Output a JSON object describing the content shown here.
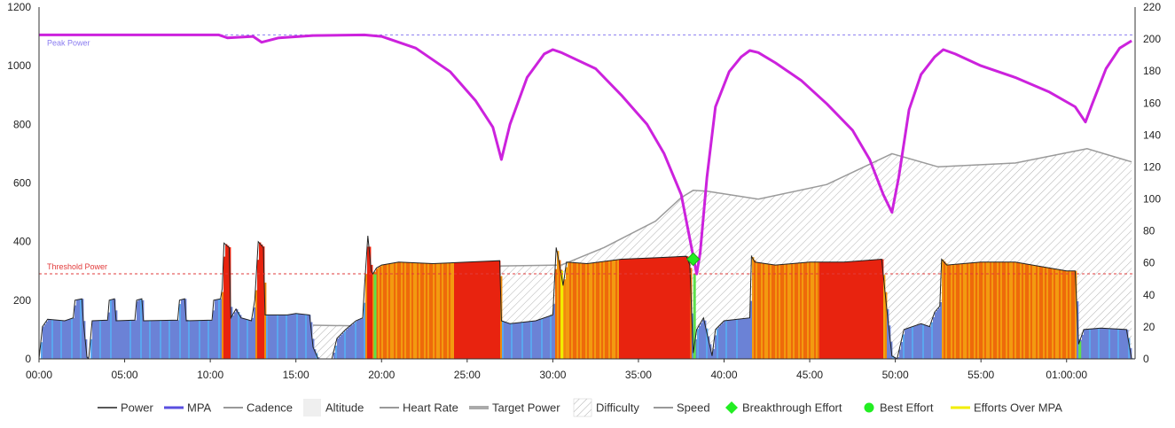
{
  "chart_data": {
    "type": "area",
    "x_axis": {
      "ticks": [
        "00:00",
        "05:00",
        "10:00",
        "15:00",
        "20:00",
        "25:00",
        "30:00",
        "35:00",
        "40:00",
        "45:00",
        "50:00",
        "55:00",
        "01:00:00"
      ],
      "range_minutes": [
        0,
        64
      ]
    },
    "y_axis_left": {
      "ticks": [
        0,
        200,
        400,
        600,
        800,
        1000,
        1200
      ],
      "range": [
        0,
        1200
      ]
    },
    "y_axis_right": {
      "ticks": [
        0,
        20,
        40,
        60,
        80,
        100,
        120,
        140,
        160,
        180,
        200,
        220
      ],
      "range": [
        0,
        220
      ]
    },
    "reference_lines": [
      {
        "label": "Peak Power",
        "value": 1105,
        "color": "#8a7cf0"
      },
      {
        "label": "Threshold Power",
        "value": 290,
        "color": "#e23b3b"
      }
    ],
    "power_series": [
      [
        0,
        0
      ],
      [
        0.2,
        110
      ],
      [
        0.5,
        135
      ],
      [
        1.5,
        130
      ],
      [
        2.0,
        140
      ],
      [
        2.1,
        200
      ],
      [
        2.5,
        205
      ],
      [
        2.6,
        120
      ],
      [
        2.8,
        5
      ],
      [
        2.9,
        0
      ],
      [
        3.1,
        130
      ],
      [
        4.0,
        132
      ],
      [
        4.1,
        200
      ],
      [
        4.4,
        205
      ],
      [
        4.5,
        130
      ],
      [
        5.6,
        132
      ],
      [
        5.7,
        200
      ],
      [
        6.0,
        205
      ],
      [
        6.1,
        130
      ],
      [
        8.1,
        132
      ],
      [
        8.2,
        200
      ],
      [
        8.5,
        205
      ],
      [
        8.6,
        130
      ],
      [
        10.1,
        132
      ],
      [
        10.2,
        200
      ],
      [
        10.6,
        205
      ],
      [
        10.7,
        240
      ],
      [
        10.8,
        395
      ],
      [
        11.1,
        380
      ],
      [
        11.2,
        140
      ],
      [
        11.5,
        170
      ],
      [
        11.8,
        140
      ],
      [
        12.4,
        130
      ],
      [
        12.6,
        200
      ],
      [
        12.8,
        400
      ],
      [
        13.1,
        380
      ],
      [
        13.2,
        150
      ],
      [
        14.5,
        150
      ],
      [
        15.0,
        155
      ],
      [
        15.8,
        150
      ],
      [
        16.0,
        40
      ],
      [
        16.3,
        0
      ],
      [
        17.1,
        0
      ],
      [
        17.4,
        70
      ],
      [
        17.9,
        100
      ],
      [
        18.5,
        130
      ],
      [
        18.9,
        140
      ],
      [
        19.0,
        240
      ],
      [
        19.2,
        420
      ],
      [
        19.4,
        300
      ],
      [
        19.5,
        290
      ],
      [
        19.7,
        310
      ],
      [
        20.0,
        320
      ],
      [
        21.0,
        330
      ],
      [
        23.0,
        325
      ],
      [
        25.0,
        330
      ],
      [
        26.9,
        335
      ],
      [
        27.0,
        130
      ],
      [
        27.5,
        120
      ],
      [
        29.0,
        130
      ],
      [
        30.0,
        150
      ],
      [
        30.2,
        380
      ],
      [
        30.4,
        320
      ],
      [
        30.6,
        250
      ],
      [
        30.8,
        330
      ],
      [
        32.0,
        325
      ],
      [
        34.0,
        340
      ],
      [
        36.0,
        345
      ],
      [
        37.8,
        350
      ],
      [
        38.0,
        320
      ],
      [
        38.2,
        20
      ],
      [
        38.4,
        100
      ],
      [
        38.8,
        140
      ],
      [
        39.3,
        10
      ],
      [
        39.5,
        100
      ],
      [
        40.0,
        130
      ],
      [
        41.5,
        140
      ],
      [
        41.6,
        350
      ],
      [
        41.8,
        330
      ],
      [
        43.0,
        320
      ],
      [
        45.0,
        330
      ],
      [
        47.0,
        330
      ],
      [
        49.2,
        340
      ],
      [
        49.5,
        170
      ],
      [
        49.8,
        10
      ],
      [
        50.1,
        0
      ],
      [
        50.5,
        100
      ],
      [
        51.5,
        120
      ],
      [
        52.0,
        110
      ],
      [
        52.3,
        160
      ],
      [
        52.6,
        180
      ],
      [
        52.7,
        340
      ],
      [
        53.0,
        320
      ],
      [
        55.0,
        330
      ],
      [
        57.0,
        330
      ],
      [
        60.0,
        300
      ],
      [
        60.5,
        300
      ],
      [
        60.7,
        50
      ],
      [
        61.0,
        100
      ],
      [
        62.0,
        105
      ],
      [
        63.5,
        100
      ],
      [
        63.8,
        0
      ]
    ],
    "mpa_series": [
      [
        0,
        1105
      ],
      [
        10.5,
        1105
      ],
      [
        11.0,
        1095
      ],
      [
        12.5,
        1100
      ],
      [
        13.0,
        1080
      ],
      [
        14.0,
        1095
      ],
      [
        16.0,
        1103
      ],
      [
        19.0,
        1105
      ],
      [
        20.0,
        1100
      ],
      [
        22.0,
        1060
      ],
      [
        24.0,
        980
      ],
      [
        25.5,
        880
      ],
      [
        26.5,
        790
      ],
      [
        27.0,
        680
      ],
      [
        27.5,
        800
      ],
      [
        28.5,
        960
      ],
      [
        29.5,
        1040
      ],
      [
        30.0,
        1055
      ],
      [
        30.5,
        1045
      ],
      [
        32.5,
        990
      ],
      [
        34.0,
        900
      ],
      [
        35.5,
        800
      ],
      [
        36.5,
        700
      ],
      [
        37.5,
        560
      ],
      [
        38.2,
        350
      ],
      [
        38.4,
        290
      ],
      [
        38.6,
        360
      ],
      [
        39.0,
        620
      ],
      [
        39.5,
        860
      ],
      [
        40.3,
        980
      ],
      [
        41.0,
        1030
      ],
      [
        41.5,
        1052
      ],
      [
        42.0,
        1045
      ],
      [
        43.0,
        1010
      ],
      [
        44.5,
        950
      ],
      [
        46.0,
        870
      ],
      [
        47.5,
        780
      ],
      [
        48.5,
        680
      ],
      [
        49.3,
        560
      ],
      [
        49.8,
        500
      ],
      [
        50.2,
        620
      ],
      [
        50.8,
        850
      ],
      [
        51.5,
        970
      ],
      [
        52.3,
        1030
      ],
      [
        52.8,
        1055
      ],
      [
        53.5,
        1040
      ],
      [
        55.0,
        1000
      ],
      [
        57.0,
        960
      ],
      [
        59.0,
        910
      ],
      [
        60.5,
        860
      ],
      [
        61.1,
        808
      ],
      [
        61.5,
        870
      ],
      [
        62.3,
        990
      ],
      [
        63.1,
        1060
      ],
      [
        63.8,
        1085
      ]
    ],
    "difficulty_series": [
      [
        16.0,
        115
      ],
      [
        19.0,
        112
      ],
      [
        20.0,
        280
      ],
      [
        24.0,
        305
      ],
      [
        27.0,
        317
      ],
      [
        30.5,
        320
      ],
      [
        33.0,
        380
      ],
      [
        36.0,
        470
      ],
      [
        37.5,
        550
      ],
      [
        38.2,
        575
      ],
      [
        39.0,
        572
      ],
      [
        42.0,
        545
      ],
      [
        46.0,
        595
      ],
      [
        49.8,
        700
      ],
      [
        52.5,
        655
      ],
      [
        57.0,
        668
      ],
      [
        61.2,
        717
      ],
      [
        63.8,
        672
      ]
    ],
    "breakthrough_effort": {
      "x": 38.2,
      "y": 340
    },
    "legend": [
      {
        "label": "Power",
        "icon": "line-dark"
      },
      {
        "label": "MPA",
        "icon": "line-blue"
      },
      {
        "label": "Cadence",
        "icon": "line-gray"
      },
      {
        "label": "Altitude",
        "icon": "box-light"
      },
      {
        "label": "Heart Rate",
        "icon": "line-gray"
      },
      {
        "label": "Target Power",
        "icon": "line-gray-thick"
      },
      {
        "label": "Difficulty",
        "icon": "hatch"
      },
      {
        "label": "Speed",
        "icon": "line-gray"
      },
      {
        "label": "Breakthrough Effort",
        "icon": "diamond-green"
      },
      {
        "label": "Best Effort",
        "icon": "dot-green"
      },
      {
        "label": "Efforts Over MPA",
        "icon": "line-yellow"
      }
    ],
    "colors": {
      "power_line": "#222222",
      "power_low": "#6b82d6",
      "power_mid": "#f2a20e",
      "power_high": "#e8230f",
      "mpa": "#cc22dd",
      "difficulty": "#9a9a9a",
      "breakthrough": "#22ee22",
      "efforts_over_mpa": "#f2ee00"
    },
    "grid": false,
    "legend_position": "bottom"
  }
}
